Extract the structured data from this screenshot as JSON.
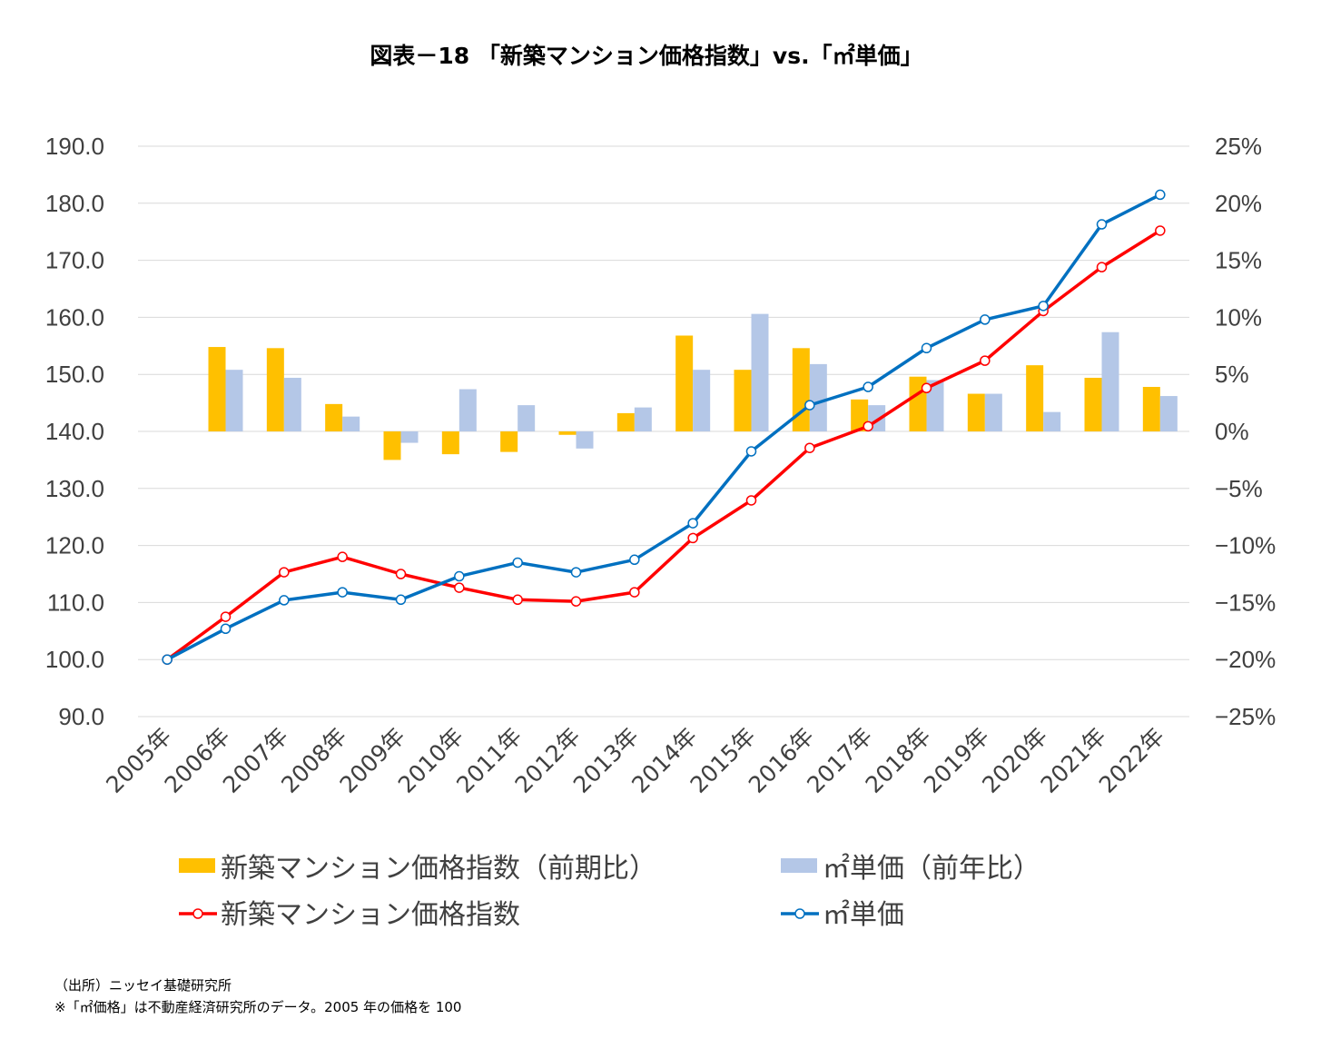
{
  "chart_data": {
    "type": "bar+line",
    "title": "図表－18 「新築マンション価格指数」vs.「㎡単価」",
    "categories": [
      "2005年",
      "2006年",
      "2007年",
      "2008年",
      "2009年",
      "2010年",
      "2011年",
      "2012年",
      "2013年",
      "2014年",
      "2015年",
      "2016年",
      "2017年",
      "2018年",
      "2019年",
      "2020年",
      "2021年",
      "2022年"
    ],
    "left_axis": {
      "ylim": [
        90,
        190
      ],
      "step": 10,
      "ticks": [
        "90.0",
        "100.0",
        "110.0",
        "120.0",
        "130.0",
        "140.0",
        "150.0",
        "160.0",
        "170.0",
        "180.0",
        "190.0"
      ]
    },
    "right_axis": {
      "ylim": [
        -25,
        25
      ],
      "step": 5,
      "ticks": [
        "−25%",
        "−20%",
        "−15%",
        "−10%",
        "−5%",
        "0%",
        "5%",
        "10%",
        "15%",
        "20%",
        "25%"
      ]
    },
    "grid": true,
    "legend_position": "bottom",
    "series": [
      {
        "name": "新築マンション価格指数（前期比）",
        "type": "bar",
        "axis": "right",
        "color": "#FFC000",
        "values": [
          null,
          7.4,
          7.3,
          2.4,
          -2.5,
          -2.0,
          -1.8,
          -0.3,
          1.6,
          8.4,
          5.4,
          7.3,
          2.8,
          4.8,
          3.3,
          5.8,
          4.7,
          3.9
        ]
      },
      {
        "name": "㎡単価（前年比）",
        "type": "bar",
        "axis": "right",
        "color": "#B4C7E7",
        "values": [
          null,
          5.4,
          4.7,
          1.3,
          -1.0,
          3.7,
          2.3,
          -1.5,
          2.1,
          5.4,
          10.3,
          5.9,
          2.3,
          4.5,
          3.3,
          1.7,
          8.7,
          3.1
        ]
      },
      {
        "name": "新築マンション価格指数",
        "type": "line",
        "axis": "left",
        "color": "#FF0000",
        "values": [
          100,
          107.5,
          115.3,
          118.0,
          115.0,
          112.6,
          110.5,
          110.2,
          111.8,
          121.3,
          127.9,
          137.1,
          140.9,
          147.6,
          152.4,
          161.1,
          168.8,
          175.2
        ]
      },
      {
        "name": "㎡単価",
        "type": "line",
        "axis": "left",
        "color": "#0070C0",
        "values": [
          100,
          105.4,
          110.4,
          111.8,
          110.5,
          114.6,
          117.0,
          115.3,
          117.5,
          123.9,
          136.5,
          144.6,
          147.8,
          154.6,
          159.6,
          162.0,
          176.3,
          181.5
        ]
      }
    ]
  },
  "notes": {
    "source": "（出所）ニッセイ基礎研究所",
    "remark": "※「㎡価格」は不動産経済研究所のデータ。2005 年の価格を 100"
  }
}
